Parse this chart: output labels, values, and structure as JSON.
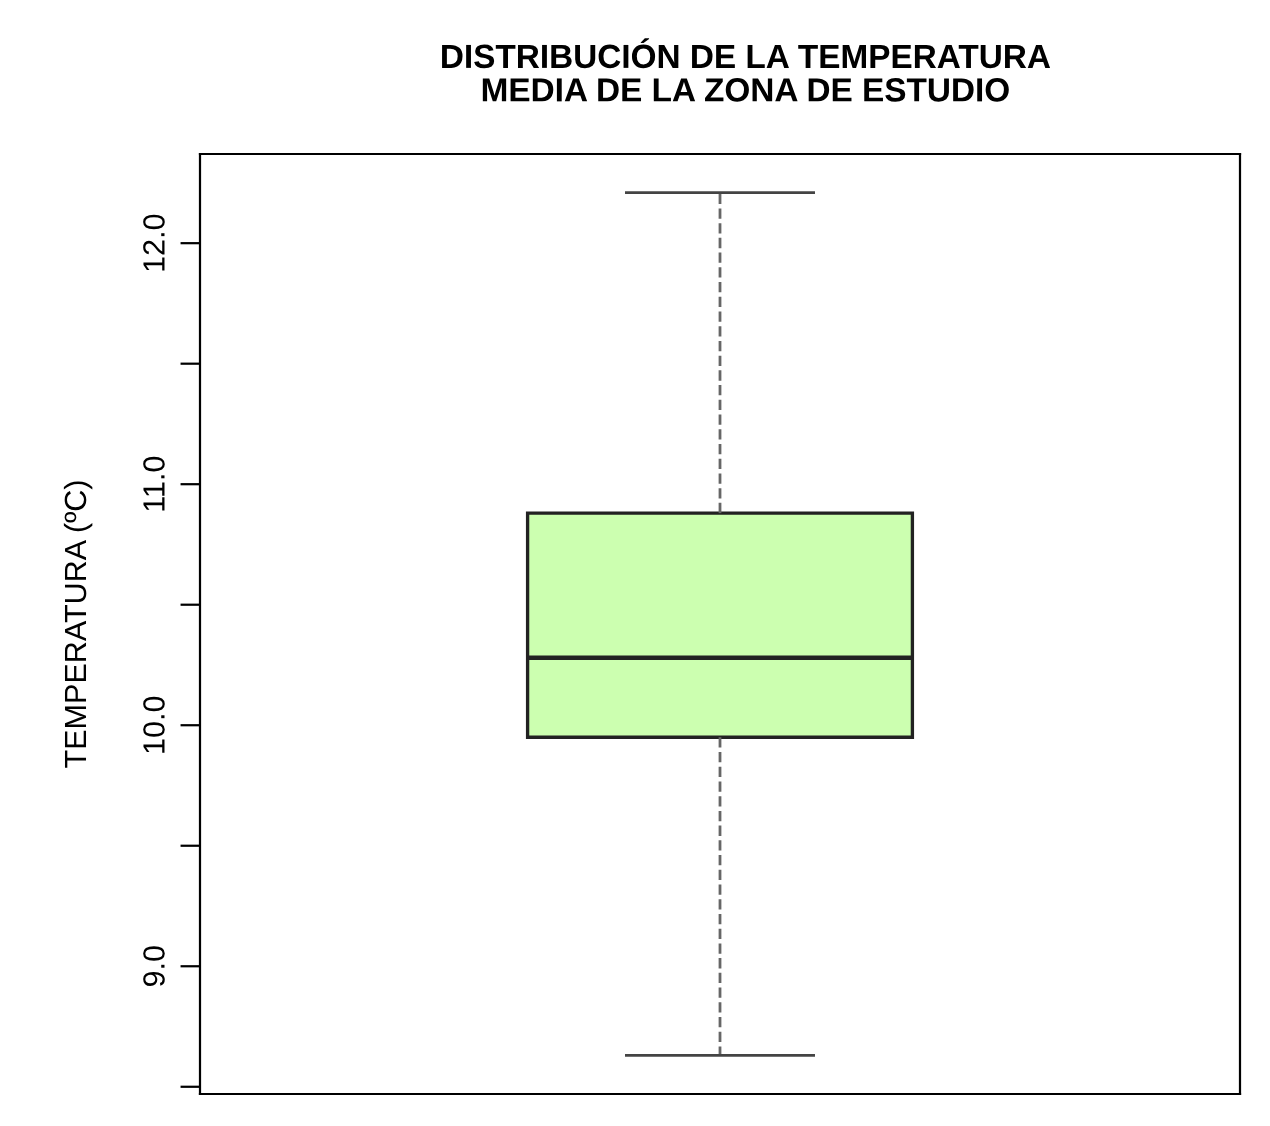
{
  "chart_data": {
    "type": "box",
    "title": "DISTRIBUCIÓN DE LA TEMPERATURA\nMEDIA DE LA ZONA DE ESTUDIO",
    "ylabel": "TEMPERATURA (ºC)",
    "categories": [
      null
    ],
    "boxes": [
      {
        "low": 8.63,
        "q1": 9.95,
        "median": 10.28,
        "q3": 10.88,
        "high": 12.21
      }
    ],
    "color": "#ccffb0",
    "ylim": [
      8.47,
      12.37
    ],
    "yticks": [
      {
        "value": 8.5,
        "label": null
      },
      {
        "value": 9,
        "label": "9.0"
      },
      {
        "value": 9.5,
        "label": null
      },
      {
        "value": 10,
        "label": "10.0"
      },
      {
        "value": 10.5,
        "label": null
      },
      {
        "value": 11,
        "label": "11.0"
      },
      {
        "value": 11.5,
        "label": null
      },
      {
        "value": 12,
        "label": "12.0"
      }
    ],
    "tick_labels": "y",
    "grid": false,
    "line_style": "dashed"
  }
}
